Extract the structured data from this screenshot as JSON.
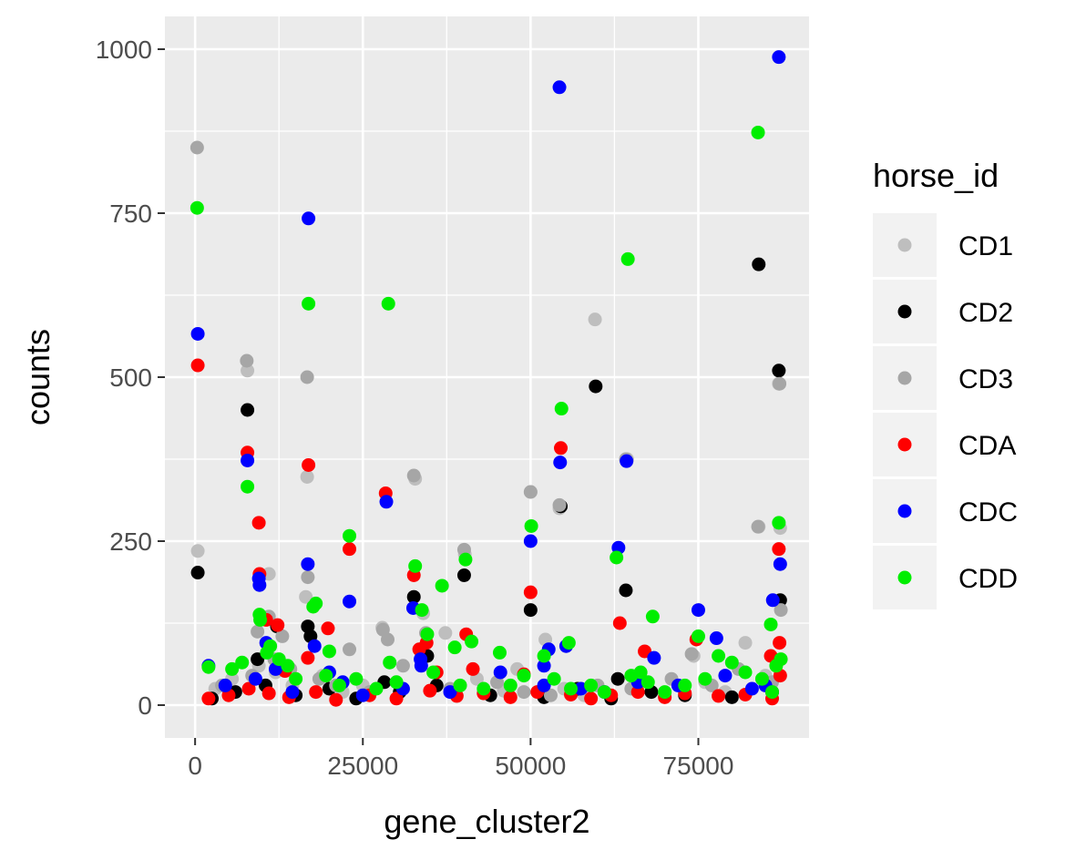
{
  "chart_data": {
    "type": "scatter",
    "title": "",
    "xlabel": "gene_cluster2",
    "ylabel": "counts",
    "xlim": [
      -4500,
      91500
    ],
    "ylim": [
      -50,
      1050
    ],
    "x_ticks": [
      0,
      25000,
      50000,
      75000
    ],
    "x_tick_labels": [
      "0",
      "25000",
      "50000",
      "75000"
    ],
    "y_ticks": [
      0,
      250,
      500,
      750,
      1000
    ],
    "y_tick_labels": [
      "0",
      "250",
      "500",
      "750",
      "1000"
    ],
    "grid": true,
    "panel_background": "#ebebeb",
    "legend": {
      "title": "horse_id",
      "position": "right"
    },
    "series": [
      {
        "name": "CD1",
        "color": "#bebebe",
        "points": [
          [
            400,
            235
          ],
          [
            7800,
            510
          ],
          [
            11000,
            200
          ],
          [
            16700,
            348
          ],
          [
            16500,
            165
          ],
          [
            27900,
            118
          ],
          [
            32800,
            345
          ],
          [
            34000,
            140
          ],
          [
            37300,
            110
          ],
          [
            40200,
            230
          ],
          [
            50000,
            325
          ],
          [
            52200,
            100
          ],
          [
            54300,
            300
          ],
          [
            59600,
            588
          ],
          [
            64400,
            375
          ],
          [
            74300,
            75
          ],
          [
            82000,
            95
          ],
          [
            84000,
            272
          ],
          [
            87000,
            490
          ],
          [
            87200,
            270
          ],
          [
            3000,
            25
          ],
          [
            5500,
            40
          ],
          [
            9500,
            60
          ],
          [
            12000,
            50
          ],
          [
            14500,
            30
          ],
          [
            19000,
            45
          ],
          [
            22000,
            20
          ],
          [
            25000,
            30
          ],
          [
            30000,
            35
          ],
          [
            42000,
            40
          ],
          [
            46000,
            22
          ],
          [
            48000,
            55
          ],
          [
            55000,
            25
          ],
          [
            58000,
            15
          ],
          [
            61000,
            20
          ],
          [
            66000,
            30
          ],
          [
            70000,
            18
          ],
          [
            76000,
            35
          ],
          [
            79000,
            20
          ],
          [
            85000,
            45
          ]
        ]
      },
      {
        "name": "CD2",
        "color": "#000000",
        "points": [
          [
            400,
            202
          ],
          [
            7800,
            450
          ],
          [
            9300,
            70
          ],
          [
            12200,
            120
          ],
          [
            16800,
            120
          ],
          [
            17200,
            105
          ],
          [
            28200,
            35
          ],
          [
            32600,
            165
          ],
          [
            33600,
            85
          ],
          [
            34600,
            75
          ],
          [
            40100,
            198
          ],
          [
            50000,
            145
          ],
          [
            54500,
            303
          ],
          [
            59700,
            486
          ],
          [
            63000,
            40
          ],
          [
            64200,
            175
          ],
          [
            84000,
            672
          ],
          [
            87000,
            510
          ],
          [
            87200,
            160
          ],
          [
            2500,
            10
          ],
          [
            6000,
            20
          ],
          [
            10500,
            30
          ],
          [
            15000,
            15
          ],
          [
            20000,
            25
          ],
          [
            24000,
            10
          ],
          [
            30500,
            20
          ],
          [
            36000,
            30
          ],
          [
            44000,
            15
          ],
          [
            52000,
            12
          ],
          [
            57000,
            25
          ],
          [
            62000,
            10
          ],
          [
            68000,
            20
          ],
          [
            73000,
            15
          ],
          [
            80000,
            12
          ],
          [
            86000,
            20
          ]
        ]
      },
      {
        "name": "CD3",
        "color": "#a6a6a6",
        "points": [
          [
            300,
            850
          ],
          [
            7700,
            525
          ],
          [
            9300,
            112
          ],
          [
            11000,
            135
          ],
          [
            13000,
            105
          ],
          [
            16700,
            500
          ],
          [
            16800,
            195
          ],
          [
            23000,
            85
          ],
          [
            28000,
            115
          ],
          [
            28700,
            100
          ],
          [
            32600,
            350
          ],
          [
            34400,
            110
          ],
          [
            40100,
            237
          ],
          [
            50000,
            325
          ],
          [
            54300,
            305
          ],
          [
            64200,
            375
          ],
          [
            74000,
            78
          ],
          [
            83900,
            272
          ],
          [
            87100,
            490
          ],
          [
            87300,
            145
          ],
          [
            4000,
            30
          ],
          [
            8500,
            45
          ],
          [
            11800,
            70
          ],
          [
            14200,
            55
          ],
          [
            18500,
            40
          ],
          [
            21000,
            30
          ],
          [
            26000,
            20
          ],
          [
            31000,
            60
          ],
          [
            38000,
            25
          ],
          [
            45000,
            35
          ],
          [
            49000,
            20
          ],
          [
            53000,
            15
          ],
          [
            60000,
            30
          ],
          [
            65000,
            25
          ],
          [
            71000,
            40
          ],
          [
            77000,
            30
          ],
          [
            81000,
            55
          ],
          [
            86000,
            35
          ]
        ]
      },
      {
        "name": "CDA",
        "color": "#ff0000",
        "points": [
          [
            400,
            518
          ],
          [
            7800,
            385
          ],
          [
            9500,
            278
          ],
          [
            9600,
            200
          ],
          [
            10600,
            130
          ],
          [
            12300,
            122
          ],
          [
            13400,
            52
          ],
          [
            16900,
            366
          ],
          [
            16800,
            72
          ],
          [
            19800,
            117
          ],
          [
            23000,
            238
          ],
          [
            28400,
            323
          ],
          [
            32600,
            198
          ],
          [
            33400,
            85
          ],
          [
            34500,
            95
          ],
          [
            36000,
            50
          ],
          [
            40400,
            108
          ],
          [
            41400,
            55
          ],
          [
            49000,
            47
          ],
          [
            50000,
            172
          ],
          [
            54500,
            392
          ],
          [
            63300,
            125
          ],
          [
            67000,
            82
          ],
          [
            74700,
            100
          ],
          [
            85800,
            75
          ],
          [
            87000,
            238
          ],
          [
            87100,
            95
          ],
          [
            87200,
            45
          ],
          [
            2000,
            10
          ],
          [
            5000,
            15
          ],
          [
            8000,
            25
          ],
          [
            11000,
            18
          ],
          [
            14000,
            12
          ],
          [
            18000,
            20
          ],
          [
            21000,
            8
          ],
          [
            26000,
            15
          ],
          [
            30000,
            10
          ],
          [
            35000,
            22
          ],
          [
            39000,
            14
          ],
          [
            43000,
            18
          ],
          [
            47000,
            12
          ],
          [
            51000,
            20
          ],
          [
            56000,
            16
          ],
          [
            59000,
            10
          ],
          [
            62000,
            15
          ],
          [
            66000,
            20
          ],
          [
            70000,
            12
          ],
          [
            73000,
            18
          ],
          [
            78000,
            14
          ],
          [
            82000,
            16
          ],
          [
            86000,
            10
          ]
        ]
      },
      {
        "name": "CDC",
        "color": "#0000ff",
        "points": [
          [
            400,
            566
          ],
          [
            7800,
            373
          ],
          [
            9500,
            193
          ],
          [
            9600,
            183
          ],
          [
            10600,
            95
          ],
          [
            16900,
            742
          ],
          [
            16800,
            215
          ],
          [
            17800,
            90
          ],
          [
            23000,
            158
          ],
          [
            28500,
            310
          ],
          [
            32500,
            148
          ],
          [
            33600,
            70
          ],
          [
            33700,
            60
          ],
          [
            50000,
            250
          ],
          [
            52000,
            60
          ],
          [
            52700,
            85
          ],
          [
            54300,
            942
          ],
          [
            54400,
            370
          ],
          [
            55300,
            90
          ],
          [
            63100,
            240
          ],
          [
            64300,
            372
          ],
          [
            68400,
            72
          ],
          [
            75000,
            145
          ],
          [
            77700,
            102
          ],
          [
            86100,
            160
          ],
          [
            87000,
            988
          ],
          [
            87200,
            215
          ],
          [
            2000,
            60
          ],
          [
            4500,
            30
          ],
          [
            9000,
            40
          ],
          [
            12000,
            55
          ],
          [
            14500,
            20
          ],
          [
            20000,
            50
          ],
          [
            22000,
            35
          ],
          [
            25000,
            15
          ],
          [
            31000,
            25
          ],
          [
            38000,
            20
          ],
          [
            45500,
            50
          ],
          [
            52000,
            30
          ],
          [
            57500,
            25
          ],
          [
            61000,
            20
          ],
          [
            66000,
            35
          ],
          [
            72000,
            30
          ],
          [
            79000,
            45
          ],
          [
            83000,
            25
          ],
          [
            85000,
            30
          ]
        ]
      },
      {
        "name": "CDD",
        "color": "#00ee00",
        "points": [
          [
            300,
            758
          ],
          [
            7800,
            333
          ],
          [
            9600,
            138
          ],
          [
            9700,
            130
          ],
          [
            10700,
            80
          ],
          [
            11200,
            90
          ],
          [
            16900,
            612
          ],
          [
            17600,
            150
          ],
          [
            18000,
            155
          ],
          [
            20000,
            82
          ],
          [
            23000,
            258
          ],
          [
            28800,
            612
          ],
          [
            29000,
            65
          ],
          [
            32800,
            212
          ],
          [
            33800,
            145
          ],
          [
            34600,
            108
          ],
          [
            36800,
            182
          ],
          [
            38700,
            88
          ],
          [
            40300,
            222
          ],
          [
            41200,
            97
          ],
          [
            45400,
            80
          ],
          [
            50100,
            273
          ],
          [
            52000,
            75
          ],
          [
            54600,
            452
          ],
          [
            55700,
            95
          ],
          [
            62800,
            225
          ],
          [
            64500,
            680
          ],
          [
            66400,
            50
          ],
          [
            68200,
            135
          ],
          [
            75000,
            105
          ],
          [
            78000,
            75
          ],
          [
            83900,
            873
          ],
          [
            85800,
            123
          ],
          [
            86600,
            60
          ],
          [
            87000,
            278
          ],
          [
            87300,
            70
          ],
          [
            2000,
            58
          ],
          [
            5500,
            55
          ],
          [
            7000,
            65
          ],
          [
            12500,
            70
          ],
          [
            13800,
            60
          ],
          [
            15000,
            40
          ],
          [
            19500,
            45
          ],
          [
            21500,
            30
          ],
          [
            24000,
            40
          ],
          [
            27000,
            25
          ],
          [
            30000,
            35
          ],
          [
            35500,
            50
          ],
          [
            39500,
            30
          ],
          [
            43000,
            25
          ],
          [
            47000,
            30
          ],
          [
            49000,
            45
          ],
          [
            53500,
            40
          ],
          [
            56000,
            25
          ],
          [
            59000,
            30
          ],
          [
            61000,
            20
          ],
          [
            65000,
            45
          ],
          [
            67500,
            35
          ],
          [
            70000,
            20
          ],
          [
            73000,
            30
          ],
          [
            76000,
            40
          ],
          [
            80000,
            65
          ],
          [
            82000,
            50
          ],
          [
            84500,
            40
          ],
          [
            86000,
            20
          ]
        ]
      }
    ]
  }
}
